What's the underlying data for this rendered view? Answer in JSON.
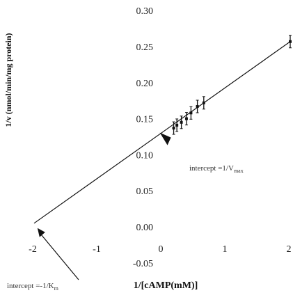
{
  "chart_data": {
    "type": "line",
    "title": "",
    "xlabel": "1/[cAMP(mM)]",
    "ylabel": "1/v (nmol/min/mg protein)",
    "xlim": [
      -2.4,
      2.05
    ],
    "ylim": [
      -0.08,
      0.31
    ],
    "x_ticks": [
      -2,
      -1,
      0,
      1,
      2
    ],
    "x_tick_labels": [
      "-2",
      "-1",
      "0",
      "1",
      "2"
    ],
    "y_ticks": [
      -0.05,
      0.0,
      0.05,
      0.1,
      0.15,
      0.2,
      0.25,
      0.3
    ],
    "y_tick_labels": [
      "-0.05",
      "0.00",
      "0.05",
      "0.10",
      "0.15",
      "0.20",
      "0.25",
      "0.30"
    ],
    "grid": false,
    "legend": "none",
    "series": [
      {
        "kind": "fit-line",
        "x": [
          -2.0,
          2.0
        ],
        "y": [
          0.005,
          0.257
        ]
      },
      {
        "kind": "data-points-with-error-bars",
        "x": [
          0.18,
          0.23,
          0.3,
          0.38,
          0.45,
          0.55,
          0.65,
          2.0
        ],
        "y": [
          0.137,
          0.141,
          0.145,
          0.15,
          0.158,
          0.167,
          0.172,
          0.257
        ]
      }
    ],
    "annotations": [
      {
        "id": "vmax",
        "text_main": "intercept =1/V",
        "text_sub": "max",
        "arrow_tip": [
          0.05,
          0.122
        ]
      },
      {
        "id": "km",
        "text_main": "intercept =-1/K",
        "text_sub": "m",
        "arrow_tip": [
          -1.98,
          0.008
        ]
      }
    ]
  }
}
